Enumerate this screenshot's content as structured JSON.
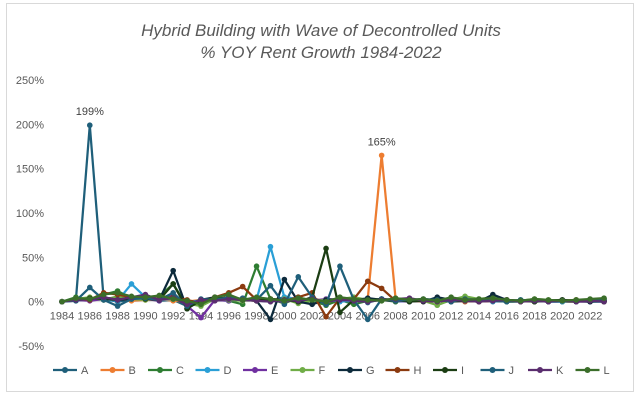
{
  "chart_data": {
    "type": "line",
    "title_line1": "Hybrid Building with Wave of Decontrolled Units",
    "title_line2": "% YOY Rent Growth 1984-2022",
    "xlabel": "",
    "ylabel": "",
    "y_unit": "%",
    "ylim": [
      -50,
      250
    ],
    "y_ticks": [
      -50,
      0,
      50,
      100,
      150,
      200,
      250
    ],
    "y_tick_labels": [
      "-50%",
      "0%",
      "50%",
      "100%",
      "150%",
      "200%",
      "250%"
    ],
    "x": [
      1984,
      1985,
      1986,
      1987,
      1988,
      1989,
      1990,
      1991,
      1992,
      1993,
      1994,
      1995,
      1996,
      1997,
      1998,
      1999,
      2000,
      2001,
      2002,
      2003,
      2004,
      2005,
      2006,
      2007,
      2008,
      2009,
      2010,
      2011,
      2012,
      2013,
      2014,
      2015,
      2016,
      2017,
      2018,
      2019,
      2020,
      2021,
      2022,
      2023
    ],
    "x_tick_labels": [
      "1984",
      "1986",
      "1988",
      "1990",
      "1992",
      "1994",
      "1996",
      "1998",
      "2000",
      "2002",
      "2004",
      "2006",
      "2008",
      "2010",
      "2012",
      "2014",
      "2016",
      "2018",
      "2020",
      "2022"
    ],
    "grid": false,
    "legend_position": "bottom",
    "data_labels": [
      {
        "series": "A",
        "x": 1986,
        "y": 199,
        "text": "199%"
      },
      {
        "series": "B",
        "x": 2007,
        "y": 165,
        "text": "165%"
      }
    ],
    "series": [
      {
        "name": "A",
        "color": "#1f5f7a",
        "values": [
          0,
          2,
          199,
          3,
          0,
          2,
          4,
          1,
          2,
          -5,
          0,
          3,
          2,
          4,
          1,
          0,
          5,
          3,
          2,
          -2,
          1,
          4,
          -1,
          3,
          0,
          1,
          2,
          0,
          1,
          0,
          2,
          1,
          0,
          0,
          1,
          0,
          0,
          1,
          0,
          0
        ]
      },
      {
        "name": "B",
        "color": "#ed7d31",
        "values": [
          0,
          1,
          3,
          2,
          4,
          1,
          2,
          3,
          1,
          0,
          2,
          3,
          5,
          2,
          1,
          3,
          2,
          1,
          4,
          0,
          1,
          2,
          3,
          165,
          4,
          1,
          0,
          2,
          1,
          0,
          1,
          0,
          2,
          1,
          0,
          1,
          0,
          0,
          1,
          0
        ]
      },
      {
        "name": "C",
        "color": "#2e7d32",
        "values": [
          0,
          5,
          2,
          8,
          12,
          4,
          3,
          6,
          20,
          -5,
          -2,
          4,
          1,
          -3,
          40,
          3,
          -2,
          5,
          1,
          -4,
          2,
          -3,
          1,
          2,
          0,
          3,
          1,
          0,
          2,
          1,
          0,
          1,
          0,
          2,
          0,
          1,
          0,
          0,
          1,
          2
        ]
      },
      {
        "name": "D",
        "color": "#2a9fd6",
        "values": [
          0,
          1,
          3,
          2,
          1,
          20,
          5,
          2,
          3,
          0,
          1,
          2,
          1,
          3,
          2,
          62,
          5,
          3,
          1,
          2,
          0,
          1,
          2,
          3,
          1,
          0,
          2,
          1,
          0,
          1,
          2,
          0,
          1,
          0,
          1,
          0,
          0,
          1,
          0,
          0
        ]
      },
      {
        "name": "E",
        "color": "#7030a0",
        "values": [
          0,
          2,
          1,
          3,
          2,
          5,
          3,
          1,
          8,
          -5,
          -18,
          2,
          1,
          3,
          2,
          1,
          0,
          2,
          1,
          3,
          2,
          1,
          0,
          2,
          1,
          0,
          1,
          2,
          0,
          1,
          0,
          1,
          2,
          0,
          1,
          0,
          1,
          0,
          0,
          1
        ]
      },
      {
        "name": "F",
        "color": "#70ad47",
        "values": [
          0,
          3,
          5,
          2,
          6,
          3,
          2,
          4,
          3,
          -2,
          -5,
          3,
          2,
          1,
          4,
          2,
          3,
          -2,
          1,
          2,
          3,
          5,
          2,
          1,
          3,
          2,
          1,
          -4,
          2,
          6,
          3,
          5,
          2,
          1,
          3,
          2,
          1,
          2,
          1,
          3
        ]
      },
      {
        "name": "G",
        "color": "#0d2a3b",
        "values": [
          0,
          2,
          3,
          5,
          2,
          3,
          5,
          2,
          35,
          -8,
          2,
          5,
          3,
          2,
          1,
          -20,
          25,
          0,
          -3,
          2,
          3,
          1,
          4,
          2,
          1,
          3,
          0,
          5,
          2,
          1,
          0,
          8,
          2,
          1,
          0,
          1,
          2,
          1,
          0,
          1
        ]
      },
      {
        "name": "H",
        "color": "#8b3a0f",
        "values": [
          0,
          3,
          2,
          10,
          8,
          5,
          4,
          3,
          5,
          2,
          -2,
          5,
          10,
          17,
          2,
          3,
          1,
          5,
          10,
          -17,
          4,
          3,
          23,
          15,
          1,
          2,
          1,
          0,
          2,
          1,
          0,
          1,
          2,
          0,
          1,
          0,
          1,
          2,
          1,
          0
        ]
      },
      {
        "name": "I",
        "color": "#1b3d13",
        "values": [
          0,
          2,
          4,
          3,
          2,
          5,
          3,
          2,
          20,
          -8,
          2,
          3,
          5,
          2,
          1,
          3,
          2,
          0,
          5,
          60,
          -12,
          2,
          1,
          3,
          2,
          0,
          1,
          2,
          0,
          1,
          2,
          1,
          0,
          1,
          0,
          1,
          2,
          0,
          1,
          0
        ]
      },
      {
        "name": "J",
        "color": "#1f5f7a",
        "values": [
          0,
          1,
          16,
          2,
          -5,
          3,
          4,
          2,
          10,
          -5,
          3,
          2,
          5,
          3,
          2,
          18,
          -3,
          28,
          5,
          -3,
          40,
          2,
          -20,
          3,
          1,
          2,
          3,
          2,
          0,
          3,
          2,
          1,
          0,
          2,
          1,
          0,
          1,
          0,
          2,
          3
        ]
      },
      {
        "name": "K",
        "color": "#5a2d6e",
        "values": [
          0,
          2,
          3,
          5,
          2,
          5,
          8,
          2,
          4,
          -3,
          2,
          1,
          3,
          2,
          1,
          0,
          2,
          1,
          3,
          0,
          2,
          1,
          0,
          2,
          3,
          4,
          1,
          0,
          2,
          1,
          0,
          1,
          2,
          0,
          1,
          0,
          1,
          0,
          1,
          0
        ]
      },
      {
        "name": "L",
        "color": "#3b6e2a",
        "values": [
          0,
          4,
          3,
          8,
          10,
          6,
          5,
          7,
          3,
          1,
          -3,
          5,
          8,
          2,
          5,
          3,
          1,
          4,
          2,
          0,
          5,
          3,
          2,
          1,
          4,
          2,
          3,
          1,
          5,
          2,
          3,
          4,
          2,
          1,
          3,
          2,
          1,
          2,
          3,
          4
        ]
      }
    ]
  }
}
